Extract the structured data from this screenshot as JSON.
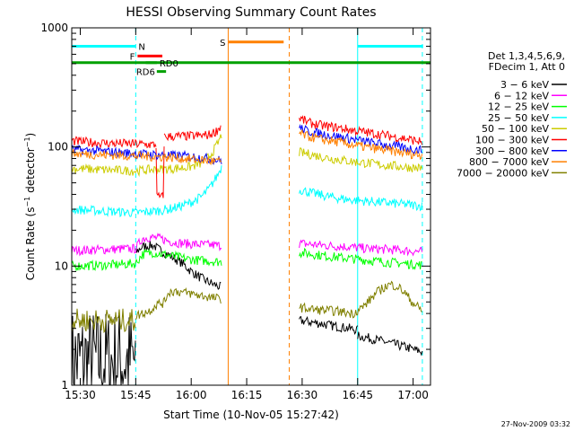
{
  "chart_data": {
    "type": "line",
    "title": "HESSI Observing Summary Count Rates",
    "xlabel": "Start Time (10-Nov-05 15:27:42)",
    "ylabel": "Count Rate (s⁻¹ detector⁻¹)",
    "ylabel_main": "Count Rate (s",
    "ylabel_sup1": "−1",
    "ylabel_mid": " detector",
    "ylabel_sup2": "−1",
    "ylabel_end": ")",
    "x_unit": "minutes after 15:27:42",
    "x_range_minutes": [
      0,
      97
    ],
    "yscale": "log",
    "ylim": [
      1,
      1000
    ],
    "x_ticks": [
      "15:30",
      "15:45",
      "16:00",
      "16:15",
      "16:30",
      "16:45",
      "17:00"
    ],
    "x_tick_minutes": [
      2.3,
      17.3,
      32.3,
      47.3,
      62.3,
      77.3,
      92.3
    ],
    "y_ticks": [
      "1",
      "10",
      "100",
      "1000"
    ],
    "y_tick_values": [
      1,
      10,
      100,
      1000
    ],
    "legend_header": [
      "Det 1,3,4,5,6,9,",
      "FDecim 1, Att 0"
    ],
    "legend_position": "right",
    "footer_date": "27-Nov-2009 03:32",
    "flags": [
      {
        "label": "N",
        "color": "#00ffff",
        "segments": [
          [
            0,
            17.3
          ],
          [
            77.3,
            95
          ]
        ],
        "value": 700
      },
      {
        "label": "F",
        "color": "#ff0000",
        "segments": [
          [
            17.8,
            24.5
          ]
        ],
        "value": 580
      },
      {
        "label": "RD0",
        "color": "#00a000",
        "segments": [
          [
            20.0,
            23.0
          ]
        ],
        "value": 510
      },
      {
        "label": "RD6",
        "color": "#00a000",
        "segments": [
          [
            23.0,
            25.5
          ]
        ],
        "value": 430
      },
      {
        "label": "S",
        "color": "#ff8000",
        "segments": [
          [
            42.3,
            57.3
          ]
        ],
        "value": 760
      }
    ],
    "saa_bar": {
      "color": "#00a000",
      "range": [
        0,
        97
      ],
      "value": 510
    },
    "vlines": [
      {
        "t": 0.0,
        "color": "#00ffff",
        "style": "solid"
      },
      {
        "t": 17.3,
        "color": "#00ffff",
        "style": "dashed"
      },
      {
        "t": 42.3,
        "color": "#ff8000",
        "style": "solid"
      },
      {
        "t": 58.8,
        "color": "#ff8000",
        "style": "dashed"
      },
      {
        "t": 77.3,
        "color": "#00ffff",
        "style": "solid"
      },
      {
        "t": 94.8,
        "color": "#00ffff",
        "style": "dashed"
      }
    ],
    "series": [
      {
        "name": "3 − 6 keV",
        "color": "#000000",
        "segments": [
          {
            "t": [
              0,
              17.3
            ],
            "v": [
              1.6,
              1.6
            ]
          },
          {
            "t": [
              17.3,
              19,
              22,
              24,
              26,
              28,
              30,
              32,
              34,
              36,
              38,
              40.5
            ],
            "v": [
              13,
              14.5,
              15,
              13.5,
              12.5,
              11.5,
              10.5,
              9.2,
              8.3,
              7.6,
              7.1,
              6.6
            ]
          },
          {
            "t": [
              61.5,
              67,
              72,
              75,
              77.3
            ],
            "v": [
              3.5,
              3.3,
              3.1,
              3.0,
              2.9
            ]
          },
          {
            "t": [
              77.3,
              80,
              85,
              90,
              94.8
            ],
            "v": [
              2.6,
              2.5,
              2.3,
              2.1,
              1.9
            ]
          }
        ]
      },
      {
        "name": "6 − 12 keV",
        "color": "#ff00ff",
        "segments": [
          {
            "t": [
              0,
              10,
              17.3,
              19,
              21,
              24,
              27,
              30,
              34,
              38,
              40.5
            ],
            "v": [
              13.5,
              13.8,
              14,
              17,
              17.5,
              17,
              16,
              15.5,
              15.2,
              15,
              14.8
            ]
          },
          {
            "t": [
              61.5,
              65,
              70,
              75,
              80,
              85,
              90,
              94.8
            ],
            "v": [
              15.5,
              15.2,
              14.8,
              14.5,
              14,
              13.8,
              13.5,
              13.2
            ]
          }
        ]
      },
      {
        "name": "12 − 25 keV",
        "color": "#00ff00",
        "segments": [
          {
            "t": [
              0,
              10,
              17.3,
              19,
              22,
              25,
              28,
              31,
              34,
              38,
              40.5
            ],
            "v": [
              10,
              10.2,
              10.5,
              12.5,
              13,
              12.5,
              12,
              11.5,
              11.2,
              11,
              10.8
            ]
          },
          {
            "t": [
              61.5,
              65,
              70,
              75,
              80,
              85,
              90,
              94.8
            ],
            "v": [
              13,
              12.6,
              12,
              11.6,
              11.2,
              10.8,
              10.5,
              10.2
            ]
          }
        ]
      },
      {
        "name": "25 − 50 keV",
        "color": "#00ffff",
        "segments": [
          {
            "t": [
              0,
              8,
              17.3,
              20,
              23,
              26,
              29,
              32,
              35,
              37,
              39,
              40.5
            ],
            "v": [
              30,
              29,
              28,
              28.5,
              29,
              30,
              31.5,
              34,
              38,
              44,
              55,
              68
            ]
          },
          {
            "t": [
              61.5,
              65,
              70,
              75,
              80,
              85,
              90,
              94.8
            ],
            "v": [
              44,
              41,
              38,
              36,
              35,
              34,
              33,
              32
            ]
          }
        ]
      },
      {
        "name": "50 − 100 keV",
        "color": "#cccc00",
        "segments": [
          {
            "t": [
              0,
              10,
              17.3,
              20,
              24,
              28,
              32,
              35,
              37,
              39,
              40.5
            ],
            "v": [
              66,
              64,
              63,
              64,
              65,
              66,
              68,
              73,
              82,
              100,
              125
            ]
          },
          {
            "t": [
              61.5,
              65,
              70,
              75,
              80,
              85,
              90,
              94.8
            ],
            "v": [
              90,
              86,
              80,
              76,
              73,
              70,
              68,
              66
            ]
          }
        ]
      },
      {
        "name": "100 − 300 keV",
        "color": "#ff0000",
        "segments": [
          {
            "t": [
              0,
              8,
              17.3,
              20,
              22.8
            ],
            "v": [
              112,
              108,
              106,
              105,
              104
            ]
          },
          {
            "t": [
              22.8,
              23,
              24.8,
              25
            ],
            "v": [
              104,
              38,
              38,
              120
            ]
          },
          {
            "t": [
              25,
              30,
              34,
              37,
              39,
              40.5
            ],
            "v": [
              122,
              123,
              124,
              126,
              135,
              152
            ]
          },
          {
            "t": [
              61.5,
              64,
              68,
              72,
              76,
              80,
              85,
              90,
              94.8
            ],
            "v": [
              175,
              160,
              150,
              145,
              138,
              132,
              125,
              118,
              110
            ]
          }
        ]
      },
      {
        "name": "300 − 800 keV",
        "color": "#0000ff",
        "segments": [
          {
            "t": [
              0,
              8,
              17.3,
              22,
              26,
              30,
              34,
              38,
              40.5
            ],
            "v": [
              95,
              92,
              88,
              86,
              85,
              84,
              82,
              79,
              77
            ]
          },
          {
            "t": [
              61.5,
              64,
              68,
              72,
              76,
              80,
              85,
              90,
              94.8
            ],
            "v": [
              145,
              135,
              128,
              122,
              116,
              110,
              104,
              98,
              94
            ]
          }
        ]
      },
      {
        "name": "800 − 7000 keV",
        "color": "#ff8000",
        "segments": [
          {
            "t": [
              0,
              8,
              17.3,
              22,
              26,
              30,
              34,
              38,
              40.5
            ],
            "v": [
              88,
              86,
              84,
              83,
              82,
              80,
              78,
              76,
              75
            ]
          },
          {
            "t": [
              61.5,
              64,
              68,
              72,
              76,
              80,
              85,
              90,
              94.8
            ],
            "v": [
              130,
              122,
              115,
              110,
              104,
              99,
              94,
              89,
              85
            ]
          }
        ]
      },
      {
        "name": "7000 − 20000 keV",
        "color": "#808000",
        "segments": [
          {
            "t": [
              0,
              17.3
            ],
            "v": [
              3.5,
              3.5
            ]
          },
          {
            "t": [
              17.3,
              19,
              21,
              23,
              25,
              26,
              28,
              30,
              32,
              34,
              36,
              38,
              40.5
            ],
            "v": [
              3.8,
              4.0,
              4.2,
              4.8,
              4.9,
              6.0,
              6.2,
              6.0,
              5.9,
              5.7,
              5.6,
              5.4,
              5.3
            ]
          },
          {
            "t": [
              61.5,
              66,
              71,
              76,
              79,
              82,
              84,
              86,
              88,
              90,
              92,
              94.8
            ],
            "v": [
              4.5,
              4.3,
              4.2,
              4.0,
              4.6,
              5.8,
              6.5,
              7.0,
              6.8,
              6.0,
              5.0,
              4.2
            ]
          }
        ]
      }
    ]
  }
}
